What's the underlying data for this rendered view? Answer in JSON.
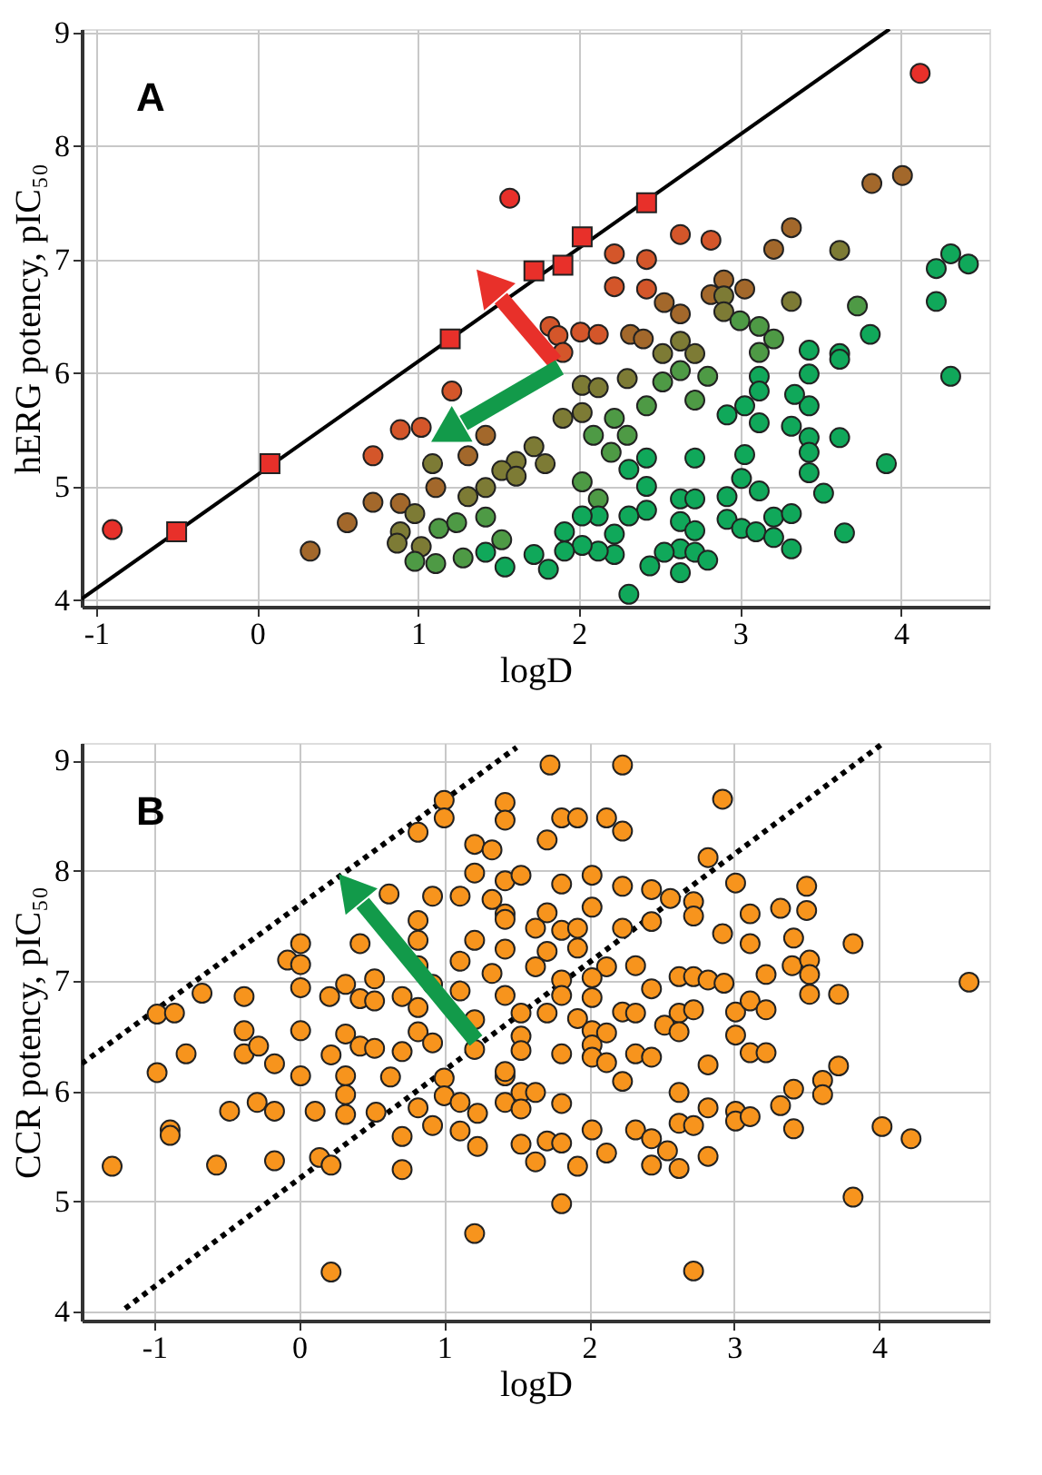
{
  "chart_data": [
    {
      "type": "scatter",
      "xlabel": "logD",
      "ylabel": "hERG potency, pIC₅₀",
      "annotations": [
        "A"
      ],
      "xlim": [
        -1.09,
        4.55
      ],
      "ylim": [
        3.94,
        9.03
      ],
      "xticks": [
        -1,
        0,
        1,
        2,
        3,
        4
      ],
      "yticks": [
        4,
        5,
        6,
        7,
        8,
        9
      ],
      "grid": true,
      "legend": false,
      "marker": "circle",
      "series": [
        {
          "type": "line",
          "marker": "none",
          "line_style": "solid",
          "color": "#000000",
          "x": [
            -1.09,
            3.93
          ],
          "values": [
            4.01,
            9.03
          ]
        },
        {
          "marker": "square",
          "color": "#e8302a",
          "x": [
            -0.5,
            0.08,
            1.2,
            1.72,
            1.9,
            2.02,
            2.42
          ],
          "values": [
            4.6,
            5.2,
            6.3,
            6.9,
            6.95,
            7.2,
            7.5
          ]
        },
        {
          "color": "#e8302a",
          "x": [
            -0.9,
            1.57,
            4.12
          ],
          "values": [
            4.62,
            7.54,
            8.64
          ]
        },
        {
          "color": "#d4562a",
          "x": [
            2.22,
            2.42,
            2.63,
            2.82,
            2.22,
            2.42,
            1.82,
            1.87,
            2.01,
            2.12,
            1.9,
            0.89,
            1.02,
            0.72,
            1.21
          ],
          "values": [
            7.05,
            7.0,
            7.22,
            7.17,
            6.76,
            6.74,
            6.41,
            6.33,
            6.36,
            6.34,
            6.18,
            5.5,
            5.52,
            5.27,
            5.84
          ]
        },
        {
          "color": "#a3682b",
          "x": [
            2.53,
            2.63,
            2.32,
            2.4,
            3.21,
            3.32,
            3.82,
            4.01,
            2.9,
            3.03,
            2.82,
            0.72,
            0.56,
            0.33,
            1.11,
            1.42,
            1.31,
            0.89
          ],
          "values": [
            6.62,
            6.52,
            6.34,
            6.3,
            7.09,
            7.28,
            7.67,
            7.74,
            6.82,
            6.74,
            6.69,
            4.86,
            4.68,
            4.43,
            4.99,
            5.45,
            5.27,
            4.85
          ]
        },
        {
          "color": "#7d7b35",
          "x": [
            3.62,
            3.32,
            2.9,
            2.9,
            2.63,
            2.72,
            2.52,
            2.02,
            2.12,
            2.3,
            1.9,
            2.02,
            1.72,
            1.79,
            1.61,
            1.52,
            1.09,
            0.98,
            0.89,
            0.87,
            1.02,
            1.31,
            1.42,
            1.61
          ],
          "values": [
            7.08,
            6.63,
            6.68,
            6.54,
            6.28,
            6.17,
            6.17,
            5.89,
            5.87,
            5.95,
            5.6,
            5.65,
            5.35,
            5.2,
            5.22,
            5.14,
            5.2,
            4.76,
            4.6,
            4.5,
            4.47,
            4.91,
            4.99,
            5.09
          ]
        },
        {
          "color": "#4e9a45",
          "x": [
            3.12,
            3.21,
            3.12,
            3.0,
            2.8,
            2.63,
            2.72,
            2.52,
            2.42,
            2.22,
            2.09,
            2.3,
            2.2,
            2.02,
            2.12,
            3.73,
            1.13,
            1.11,
            1.28,
            1.42,
            1.52,
            1.24,
            0.98
          ],
          "values": [
            6.41,
            6.3,
            6.18,
            6.46,
            5.97,
            6.02,
            5.76,
            5.92,
            5.71,
            5.6,
            5.45,
            5.45,
            5.3,
            5.04,
            4.89,
            6.59,
            4.63,
            4.32,
            4.37,
            4.73,
            4.53,
            4.68,
            4.34
          ]
        },
        {
          "color": "#10a85a",
          "x": [
            4.22,
            4.31,
            4.42,
            4.22,
            4.31,
            3.81,
            3.62,
            3.62,
            3.43,
            3.43,
            3.43,
            3.34,
            3.32,
            3.43,
            3.43,
            3.43,
            3.52,
            3.62,
            3.91,
            3.65,
            3.12,
            3.12,
            3.12,
            3.03,
            2.92,
            3.03,
            3.01,
            3.12,
            2.92,
            2.92,
            3.01,
            3.1,
            3.21,
            3.32,
            3.21,
            3.32,
            2.72,
            2.63,
            2.72,
            2.63,
            2.72,
            2.63,
            2.72,
            2.8,
            2.53,
            2.44,
            2.63,
            2.31,
            2.42,
            2.42,
            2.31,
            2.22,
            2.22,
            2.12,
            2.12,
            2.02,
            1.91,
            2.02,
            1.91,
            1.81,
            1.72,
            2.31,
            2.42,
            1.54,
            1.42
          ],
          "values": [
            6.92,
            7.05,
            6.96,
            6.63,
            5.97,
            6.34,
            6.17,
            6.12,
            6.2,
            5.99,
            5.71,
            5.81,
            5.53,
            5.43,
            5.3,
            5.12,
            4.94,
            5.43,
            5.2,
            4.59,
            5.97,
            5.84,
            5.56,
            5.71,
            5.63,
            5.28,
            5.07,
            4.96,
            4.91,
            4.71,
            4.63,
            4.6,
            4.73,
            4.76,
            4.55,
            4.45,
            5.25,
            4.89,
            4.89,
            4.69,
            4.61,
            4.45,
            4.42,
            4.35,
            4.42,
            4.3,
            4.24,
            4.05,
            5.0,
            4.79,
            4.74,
            4.58,
            4.4,
            4.74,
            4.43,
            4.74,
            4.6,
            4.48,
            4.43,
            4.27,
            4.4,
            5.15,
            5.25,
            4.29,
            4.42
          ]
        }
      ]
    },
    {
      "type": "scatter",
      "xlabel": "logD",
      "ylabel": "CCR potency, pIC₅₀",
      "annotations": [
        "B"
      ],
      "xlim": [
        -1.5,
        4.76
      ],
      "ylim": [
        3.92,
        9.16
      ],
      "xticks": [
        -1,
        0,
        1,
        2,
        3,
        4
      ],
      "yticks": [
        4,
        5,
        6,
        7,
        8,
        9
      ],
      "grid": true,
      "legend": false,
      "marker": "circle",
      "series": [
        {
          "type": "line",
          "marker": "none",
          "line_style": "dotted",
          "color": "#000000",
          "x": [
            -1.5,
            1.5
          ],
          "values": [
            6.25,
            9.12
          ]
        },
        {
          "type": "line",
          "marker": "none",
          "line_style": "dotted",
          "color": "#000000",
          "x": [
            -1.2,
            4.02
          ],
          "values": [
            4.03,
            9.15
          ]
        },
        {
          "color": "#f7941d",
          "x": [
            -1.29,
            -0.98,
            -0.86,
            -0.67,
            -0.98,
            -0.78,
            -0.89,
            -0.89,
            -0.57,
            -0.48,
            -0.38,
            -0.38,
            -0.38,
            -0.29,
            -0.28,
            -0.17,
            -0.17,
            -0.17,
            -0.08,
            0.01,
            0.01,
            0.01,
            0.01,
            0.01,
            0.11,
            0.14,
            0.22,
            0.22,
            0.22,
            0.21,
            0.32,
            0.32,
            0.32,
            0.32,
            0.32,
            0.42,
            0.42,
            0.42,
            0.52,
            0.52,
            0.52,
            0.53,
            0.62,
            0.63,
            0.71,
            0.71,
            0.71,
            0.71,
            0.82,
            0.82,
            0.82,
            0.82,
            0.82,
            0.82,
            0.82,
            0.92,
            0.92,
            0.92,
            0.92,
            1.0,
            1.0,
            1.0,
            1.0,
            1.11,
            1.11,
            1.11,
            1.11,
            1.11,
            1.21,
            1.21,
            1.21,
            1.21,
            1.21,
            1.21,
            1.23,
            1.23,
            1.33,
            1.33,
            1.33,
            1.42,
            1.42,
            1.42,
            1.42,
            1.42,
            1.42,
            1.73,
            2.23,
            1.81,
            1.92,
            2.12,
            2.23,
            1.71,
            2.92,
            2.82,
            3.01,
            3.5,
            3.5,
            3.32,
            3.11,
            1.42,
            1.42,
            1.53,
            1.81,
            2.02,
            2.02,
            2.23,
            2.43,
            2.56,
            2.72,
            2.72,
            2.43,
            2.23,
            1.63,
            1.81,
            1.71,
            1.92,
            1.71,
            1.92,
            2.92,
            3.11,
            3.41,
            3.82,
            2.12,
            2.32,
            2.62,
            2.72,
            2.82,
            2.93,
            3.22,
            3.4,
            3.52,
            3.52,
            3.52,
            3.72,
            4.62,
            1.42,
            1.63,
            1.81,
            2.02,
            1.81,
            2.02,
            2.43,
            2.62,
            2.72,
            2.23,
            2.32,
            2.52,
            2.62,
            3.01,
            3.11,
            3.22,
            3.01,
            3.11,
            3.22,
            1.53,
            1.71,
            1.92,
            2.02,
            2.02,
            2.12,
            1.81,
            2.02,
            2.12,
            2.32,
            2.43,
            1.53,
            1.53,
            1.42,
            2.82,
            2.23,
            2.62,
            3.72,
            3.61,
            3.61,
            3.41,
            3.32,
            3.41,
            3.01,
            3.01,
            3.11,
            2.82,
            2.62,
            2.72,
            1.53,
            1.63,
            1.53,
            1.81,
            2.02,
            2.12,
            2.32,
            2.43,
            2.54,
            2.43,
            2.62,
            2.82,
            1.53,
            1.63,
            1.71,
            1.81,
            1.92,
            1.81,
            2.72,
            3.82,
            4.02,
            4.22
          ],
          "values": [
            5.32,
            6.7,
            6.71,
            6.89,
            6.17,
            6.34,
            5.65,
            5.6,
            5.33,
            5.82,
            6.86,
            6.55,
            6.34,
            5.9,
            6.41,
            6.25,
            5.82,
            5.37,
            7.19,
            7.34,
            7.15,
            6.94,
            6.55,
            6.14,
            5.82,
            5.4,
            5.33,
            4.36,
            6.33,
            6.86,
            6.97,
            6.52,
            6.14,
            5.97,
            5.79,
            6.84,
            6.41,
            7.34,
            7.02,
            6.82,
            6.39,
            5.81,
            7.79,
            6.13,
            6.36,
            5.29,
            5.59,
            6.86,
            7.55,
            7.37,
            7.14,
            6.76,
            6.54,
            5.85,
            8.35,
            7.77,
            6.97,
            6.44,
            5.69,
            8.64,
            8.48,
            6.12,
            5.96,
            7.77,
            7.18,
            6.91,
            5.9,
            5.64,
            4.71,
            8.24,
            7.98,
            7.37,
            6.65,
            6.38,
            5.8,
            5.5,
            8.19,
            7.74,
            7.07,
            8.62,
            8.46,
            7.61,
            7.29,
            6.14,
            5.9,
            8.96,
            8.96,
            8.48,
            8.48,
            8.48,
            8.36,
            8.28,
            8.65,
            8.12,
            7.89,
            7.86,
            7.64,
            7.66,
            7.61,
            7.91,
            7.56,
            7.96,
            7.88,
            7.96,
            7.67,
            7.86,
            7.83,
            7.75,
            7.72,
            7.59,
            7.54,
            7.48,
            7.48,
            7.46,
            7.62,
            7.48,
            7.27,
            7.3,
            7.43,
            7.34,
            7.39,
            7.34,
            7.13,
            7.14,
            7.04,
            7.04,
            7.01,
            6.98,
            7.06,
            7.14,
            7.19,
            7.06,
            6.88,
            6.88,
            6.99,
            6.87,
            7.13,
            7.01,
            7.03,
            6.87,
            6.85,
            6.93,
            6.71,
            6.74,
            6.72,
            6.71,
            6.6,
            6.54,
            6.72,
            6.82,
            6.74,
            6.51,
            6.35,
            6.35,
            6.71,
            6.71,
            6.66,
            6.55,
            6.42,
            6.53,
            6.34,
            6.31,
            6.26,
            6.34,
            6.31,
            6.5,
            6.37,
            6.18,
            6.24,
            6.09,
            5.99,
            6.23,
            6.1,
            5.97,
            6.02,
            5.87,
            5.66,
            5.82,
            5.73,
            5.77,
            5.85,
            5.71,
            5.69,
            5.99,
            5.99,
            5.84,
            5.89,
            5.65,
            5.44,
            5.65,
            5.57,
            5.46,
            5.33,
            5.3,
            5.41,
            5.52,
            5.36,
            5.55,
            5.53,
            5.32,
            4.98,
            4.37,
            5.04,
            5.68,
            5.57
          ]
        }
      ]
    }
  ]
}
